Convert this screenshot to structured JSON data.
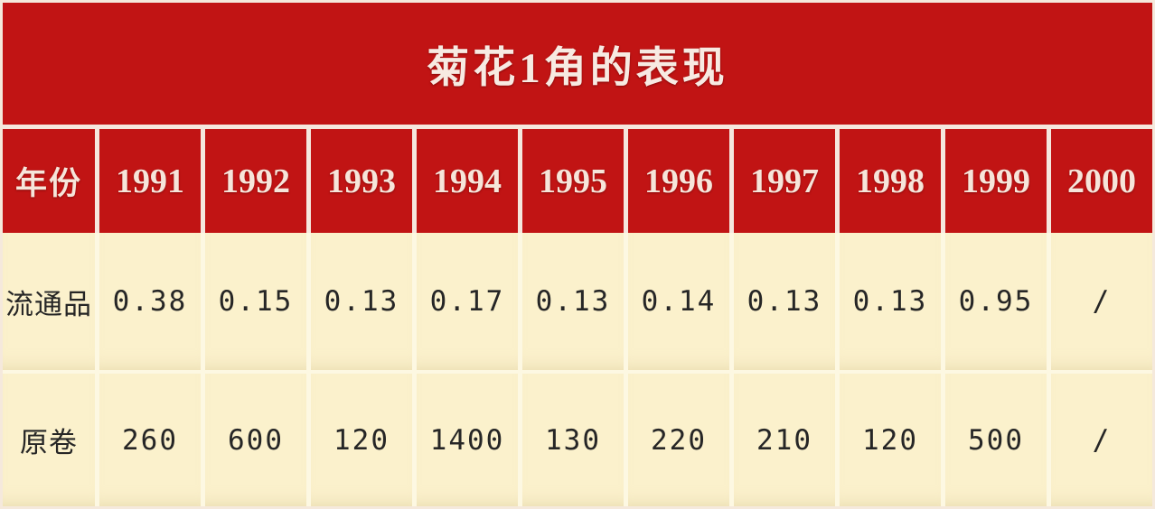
{
  "title": "菊花1角的表现",
  "table": {
    "header_label": "年份",
    "years": [
      "1991",
      "1992",
      "1993",
      "1994",
      "1995",
      "1996",
      "1997",
      "1998",
      "1999",
      "2000"
    ],
    "rows": [
      {
        "label": "流通品",
        "values": [
          "0.38",
          "0.15",
          "0.13",
          "0.17",
          "0.13",
          "0.14",
          "0.13",
          "0.13",
          "0.95",
          "/"
        ]
      },
      {
        "label": "原卷",
        "values": [
          "260",
          "600",
          "120",
          "1400",
          "130",
          "220",
          "210",
          "120",
          "500",
          "/"
        ]
      }
    ]
  },
  "chart_data": {
    "type": "table",
    "title": "菊花1角的表现",
    "categories": [
      "1991",
      "1992",
      "1993",
      "1994",
      "1995",
      "1996",
      "1997",
      "1998",
      "1999",
      "2000"
    ],
    "series": [
      {
        "name": "流通品",
        "values": [
          0.38,
          0.15,
          0.13,
          0.17,
          0.13,
          0.14,
          0.13,
          0.13,
          0.95,
          null
        ]
      },
      {
        "name": "原卷",
        "values": [
          260,
          600,
          120,
          1400,
          130,
          220,
          210,
          120,
          500,
          null
        ]
      }
    ],
    "missing_value_marker": "/"
  },
  "colors": {
    "header_red": "#c11414",
    "separator_white": "#f5e7de",
    "body_cream": "#fbf1cc",
    "body_gap_cream": "#fdf8e2",
    "title_text": "#f7eae2",
    "body_text": "#262626"
  }
}
